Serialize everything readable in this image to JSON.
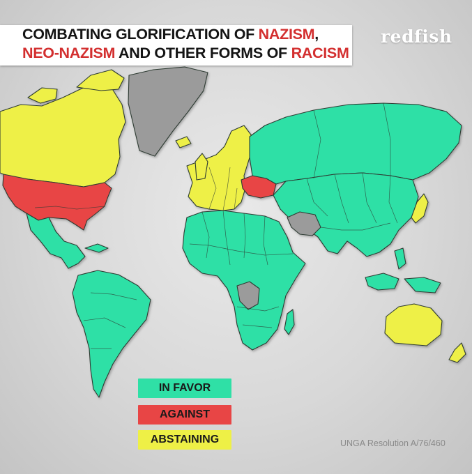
{
  "title": {
    "line1_plain": "COMBATING GLORIFICATION OF ",
    "line1_highlight": "NAZISM",
    "line1_trail": ",",
    "line2_highlight_a": "NEO-NAZISM",
    "line2_plain": " AND OTHER FORMS OF ",
    "line2_highlight_b": "RACISM"
  },
  "logo": "redfish",
  "legend": [
    {
      "label": "IN FAVOR",
      "color": "#2fe0a6"
    },
    {
      "label": "AGAINST",
      "color": "#e84545"
    },
    {
      "label": "ABSTAINING",
      "color": "#eef046"
    }
  ],
  "source": "UNGA Resolution A/76/460",
  "colors": {
    "in_favor": "#2fe0a6",
    "against": "#e84545",
    "abstaining": "#eef046",
    "no_vote": "#9b9b9b",
    "highlight_text": "#d32f2f"
  },
  "regions": [
    {
      "name": "canada",
      "vote": "abstaining"
    },
    {
      "name": "united-states",
      "vote": "against"
    },
    {
      "name": "greenland",
      "vote": "no_vote"
    },
    {
      "name": "latin-america",
      "vote": "in_favor"
    },
    {
      "name": "europe",
      "vote": "abstaining"
    },
    {
      "name": "ukraine",
      "vote": "against"
    },
    {
      "name": "russia",
      "vote": "in_favor"
    },
    {
      "name": "asia",
      "vote": "in_favor"
    },
    {
      "name": "iran",
      "vote": "no_vote"
    },
    {
      "name": "japan",
      "vote": "abstaining"
    },
    {
      "name": "africa",
      "vote": "in_favor"
    },
    {
      "name": "dr-congo",
      "vote": "no_vote"
    },
    {
      "name": "australia",
      "vote": "abstaining"
    },
    {
      "name": "new-zealand",
      "vote": "abstaining"
    }
  ]
}
